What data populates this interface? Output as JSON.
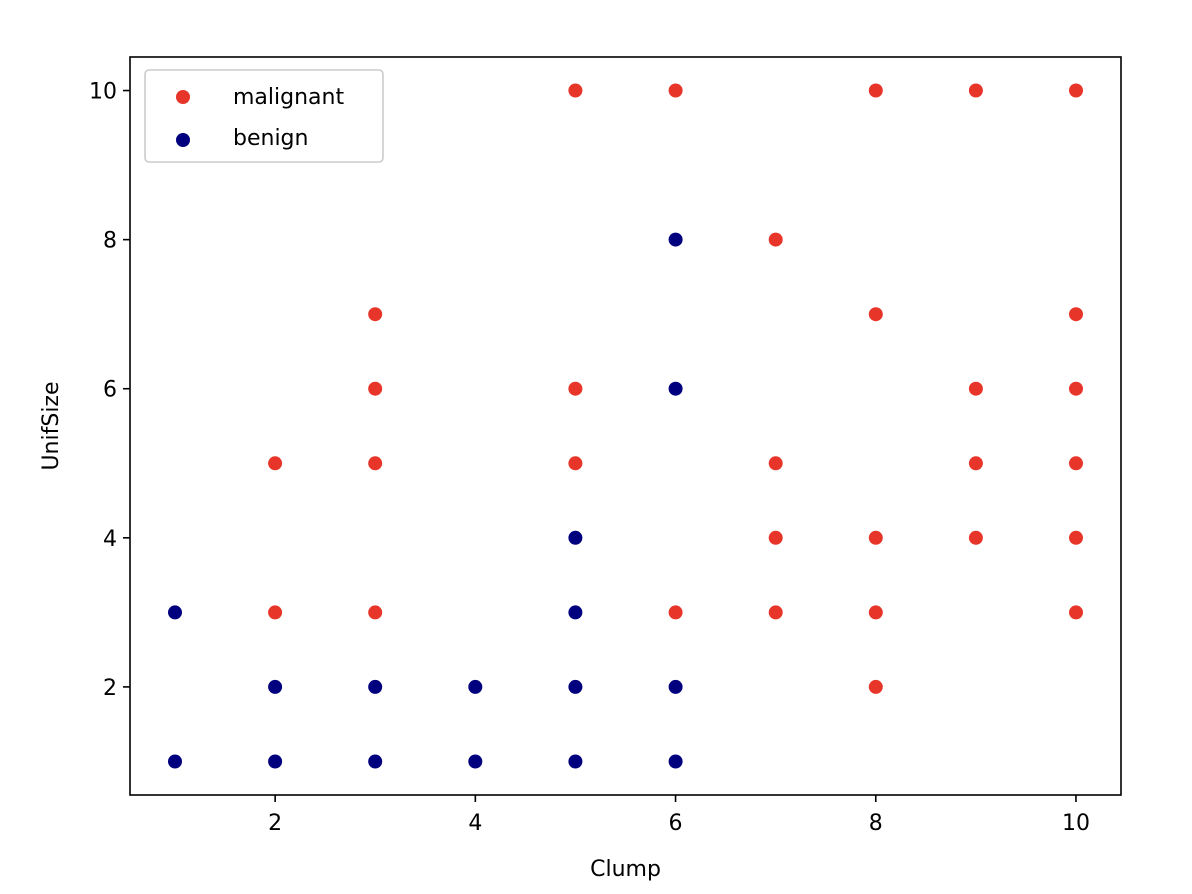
{
  "chart_data": {
    "type": "scatter",
    "title": "",
    "xlabel": "Clump",
    "ylabel": "UnifSize",
    "xlim": [
      0.55,
      10.45
    ],
    "ylim": [
      0.55,
      10.45
    ],
    "xticks": [
      2,
      4,
      6,
      8,
      10
    ],
    "yticks": [
      2,
      4,
      6,
      8,
      10
    ],
    "grid": false,
    "legend_position": "top-left",
    "series": [
      {
        "name": "malignant",
        "color": "#e8352a",
        "points": [
          [
            5,
            10
          ],
          [
            6,
            10
          ],
          [
            8,
            10
          ],
          [
            9,
            10
          ],
          [
            10,
            10
          ],
          [
            7,
            8
          ],
          [
            3,
            7
          ],
          [
            8,
            7
          ],
          [
            10,
            7
          ],
          [
            3,
            6
          ],
          [
            5,
            6
          ],
          [
            9,
            6
          ],
          [
            10,
            6
          ],
          [
            2,
            5
          ],
          [
            3,
            5
          ],
          [
            5,
            5
          ],
          [
            7,
            5
          ],
          [
            9,
            5
          ],
          [
            10,
            5
          ],
          [
            7,
            4
          ],
          [
            8,
            4
          ],
          [
            9,
            4
          ],
          [
            10,
            4
          ],
          [
            2,
            3
          ],
          [
            3,
            3
          ],
          [
            6,
            3
          ],
          [
            7,
            3
          ],
          [
            8,
            3
          ],
          [
            10,
            3
          ],
          [
            8,
            2
          ]
        ]
      },
      {
        "name": "benign",
        "color": "#00007f",
        "points": [
          [
            6,
            8
          ],
          [
            6,
            6
          ],
          [
            5,
            4
          ],
          [
            1,
            3
          ],
          [
            5,
            3
          ],
          [
            2,
            2
          ],
          [
            3,
            2
          ],
          [
            4,
            2
          ],
          [
            5,
            2
          ],
          [
            6,
            2
          ],
          [
            1,
            1
          ],
          [
            2,
            1
          ],
          [
            3,
            1
          ],
          [
            4,
            1
          ],
          [
            5,
            1
          ],
          [
            6,
            1
          ]
        ]
      }
    ]
  }
}
